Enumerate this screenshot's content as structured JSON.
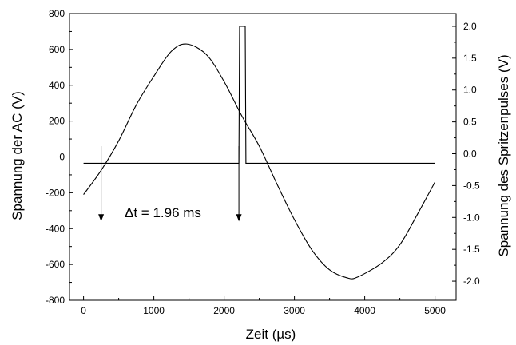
{
  "chart_data": {
    "type": "line",
    "xlabel": "Zeit (µs)",
    "ylabel_left": "Spannung der AC (V)",
    "ylabel_right": "Spannung des Spritzenpulses (V)",
    "xlim": [
      -200,
      5300
    ],
    "ylim_left": [
      -800,
      800
    ],
    "ylim_right": [
      -2.3,
      2.2
    ],
    "x_ticks": [
      "0",
      "1000",
      "2000",
      "3000",
      "4000",
      "5000"
    ],
    "y_left_ticks": [
      "-800",
      "-600",
      "-400",
      "-200",
      "0",
      "200",
      "400",
      "600",
      "800"
    ],
    "y_right_ticks": [
      "-2.0",
      "-1.5",
      "-1.0",
      "-0.5",
      "0.0",
      "0.5",
      "1.0",
      "1.5",
      "2.0"
    ],
    "grid": false,
    "reference_line": {
      "axis": "left",
      "y": 0,
      "style": "dotted"
    },
    "series": [
      {
        "axis": "left",
        "x": [
          0,
          250,
          500,
          750,
          1000,
          1250,
          1470,
          1750,
          2000,
          2250,
          2500,
          2750,
          3000,
          3250,
          3500,
          3750,
          3900,
          4250,
          4500,
          4750,
          5000
        ],
        "values": [
          -210,
          -75,
          90,
          290,
          450,
          590,
          630,
          570,
          420,
          230,
          60,
          -150,
          -350,
          -520,
          -630,
          -675,
          -670,
          -590,
          -490,
          -320,
          -140
        ]
      },
      {
        "axis": "right",
        "x": [
          0,
          2200,
          2210,
          2220,
          2300,
          2310,
          2320,
          5000
        ],
        "values": [
          -0.15,
          -0.15,
          -0.15,
          2.0,
          2.0,
          -0.15,
          -0.15,
          -0.15
        ]
      }
    ],
    "annotations": [
      {
        "text": "Δt = 1.96 ms",
        "x": 600,
        "y_left": -320
      },
      {
        "type": "arrow",
        "x": 250,
        "from_y_left": 60,
        "to_y_left": -360
      },
      {
        "type": "arrow",
        "x": 2210,
        "from_y_left": 60,
        "to_y_left": -360
      }
    ]
  }
}
